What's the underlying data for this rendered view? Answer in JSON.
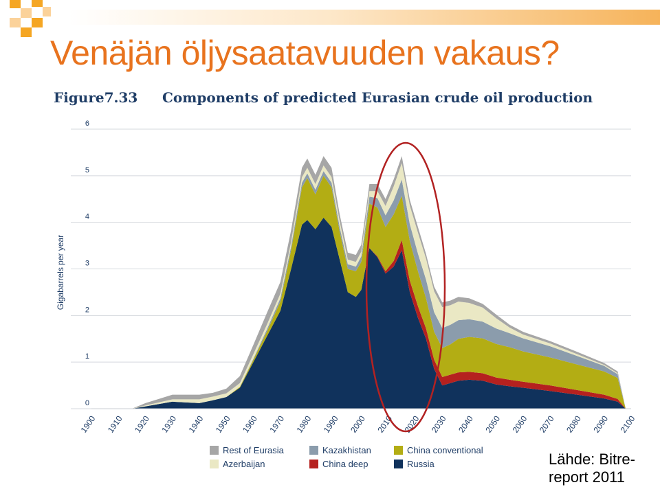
{
  "slide": {
    "title": "Venäjän öljysaatavuuden vakaus?",
    "source_line1": "Lähde: Bitre-",
    "source_line2": "report 2011"
  },
  "colors": {
    "title": "#e8731e",
    "figure_text": "#1f3d66",
    "highlight_ellipse": "#b22222",
    "deco_orange": "#f5a623"
  },
  "chart_data": {
    "type": "area",
    "stacked": true,
    "figure_label": "Figure7.33",
    "title": "Components of predicted Eurasian crude oil production",
    "xlabel": "",
    "ylabel": "Gigabarrels per year",
    "xlim": [
      1900,
      2100
    ],
    "ylim": [
      0,
      6
    ],
    "x_ticks": [
      "1900",
      "1910",
      "1920",
      "1930",
      "1940",
      "1950",
      "1960",
      "1970",
      "1980",
      "1990",
      "2000",
      "2010",
      "2020",
      "2030",
      "2040",
      "2050",
      "2060",
      "2070",
      "2080",
      "2090",
      "2100"
    ],
    "y_ticks": [
      "0",
      "1",
      "2",
      "3",
      "4",
      "5",
      "6"
    ],
    "grid": true,
    "legend_position": "bottom",
    "annotation": "red ellipse highlighting the 2010-2030 decline",
    "x": [
      1900,
      1915,
      1920,
      1930,
      1940,
      1945,
      1950,
      1955,
      1960,
      1965,
      1970,
      1974,
      1978,
      1980,
      1983,
      1986,
      1989,
      1992,
      1995,
      1998,
      2000,
      2003,
      2006,
      2009,
      2012,
      2015,
      2018,
      2021,
      2024,
      2027,
      2030,
      2033,
      2036,
      2040,
      2045,
      2050,
      2055,
      2060,
      2070,
      2080,
      2090,
      2095,
      2098
    ],
    "series": [
      {
        "name": "Russia",
        "color": "#10325c",
        "values": [
          0,
          0,
          0.05,
          0.15,
          0.12,
          0.18,
          0.25,
          0.45,
          1.0,
          1.55,
          2.1,
          3.0,
          3.95,
          4.05,
          3.85,
          4.1,
          3.9,
          3.2,
          2.5,
          2.4,
          2.55,
          3.45,
          3.25,
          2.9,
          3.05,
          3.4,
          2.5,
          1.95,
          1.5,
          0.85,
          0.5,
          0.55,
          0.6,
          0.62,
          0.6,
          0.52,
          0.48,
          0.45,
          0.38,
          0.3,
          0.22,
          0.15,
          0.0
        ]
      },
      {
        "name": "China deep",
        "color": "#b5211f",
        "values": [
          0,
          0,
          0,
          0,
          0,
          0,
          0,
          0,
          0,
          0,
          0,
          0,
          0,
          0,
          0,
          0,
          0,
          0,
          0,
          0,
          0,
          0,
          0.02,
          0.05,
          0.12,
          0.22,
          0.25,
          0.25,
          0.22,
          0.2,
          0.18,
          0.18,
          0.18,
          0.17,
          0.16,
          0.15,
          0.14,
          0.13,
          0.12,
          0.1,
          0.08,
          0.06,
          0.0
        ]
      },
      {
        "name": "China conventional",
        "color": "#b3ad14",
        "values": [
          0,
          0,
          0,
          0,
          0,
          0,
          0,
          0.02,
          0.05,
          0.1,
          0.2,
          0.4,
          0.8,
          0.9,
          0.75,
          0.9,
          0.85,
          0.6,
          0.5,
          0.55,
          0.6,
          0.95,
          1.05,
          0.95,
          1.0,
          0.95,
          0.85,
          0.75,
          0.65,
          0.6,
          0.62,
          0.65,
          0.72,
          0.75,
          0.75,
          0.72,
          0.7,
          0.65,
          0.6,
          0.55,
          0.5,
          0.45,
          0.0
        ]
      },
      {
        "name": "Kazakhistan",
        "color": "#8b9cac",
        "values": [
          0,
          0,
          0,
          0,
          0,
          0,
          0,
          0,
          0.02,
          0.05,
          0.07,
          0.08,
          0.1,
          0.1,
          0.1,
          0.1,
          0.1,
          0.1,
          0.1,
          0.1,
          0.12,
          0.15,
          0.2,
          0.25,
          0.3,
          0.35,
          0.36,
          0.38,
          0.4,
          0.42,
          0.43,
          0.42,
          0.4,
          0.38,
          0.36,
          0.33,
          0.3,
          0.28,
          0.24,
          0.18,
          0.12,
          0.08,
          0.0
        ]
      },
      {
        "name": "Azerbaijan",
        "color": "#eae8c4",
        "values": [
          0,
          0,
          0.02,
          0.05,
          0.08,
          0.08,
          0.08,
          0.08,
          0.1,
          0.1,
          0.1,
          0.1,
          0.12,
          0.12,
          0.12,
          0.12,
          0.12,
          0.12,
          0.1,
          0.1,
          0.1,
          0.12,
          0.15,
          0.2,
          0.3,
          0.35,
          0.4,
          0.45,
          0.45,
          0.45,
          0.45,
          0.42,
          0.4,
          0.35,
          0.3,
          0.22,
          0.12,
          0.08,
          0.06,
          0.04,
          0.02,
          0.02,
          0.0
        ]
      },
      {
        "name": "Rest of Eurasia",
        "color": "#a6a6a6",
        "values": [
          0,
          0,
          0.05,
          0.1,
          0.1,
          0.08,
          0.1,
          0.15,
          0.2,
          0.25,
          0.25,
          0.25,
          0.2,
          0.2,
          0.2,
          0.2,
          0.2,
          0.15,
          0.15,
          0.15,
          0.15,
          0.15,
          0.15,
          0.15,
          0.15,
          0.15,
          0.12,
          0.12,
          0.1,
          0.1,
          0.1,
          0.1,
          0.1,
          0.1,
          0.08,
          0.08,
          0.06,
          0.06,
          0.05,
          0.05,
          0.04,
          0.04,
          0.0
        ]
      }
    ]
  }
}
